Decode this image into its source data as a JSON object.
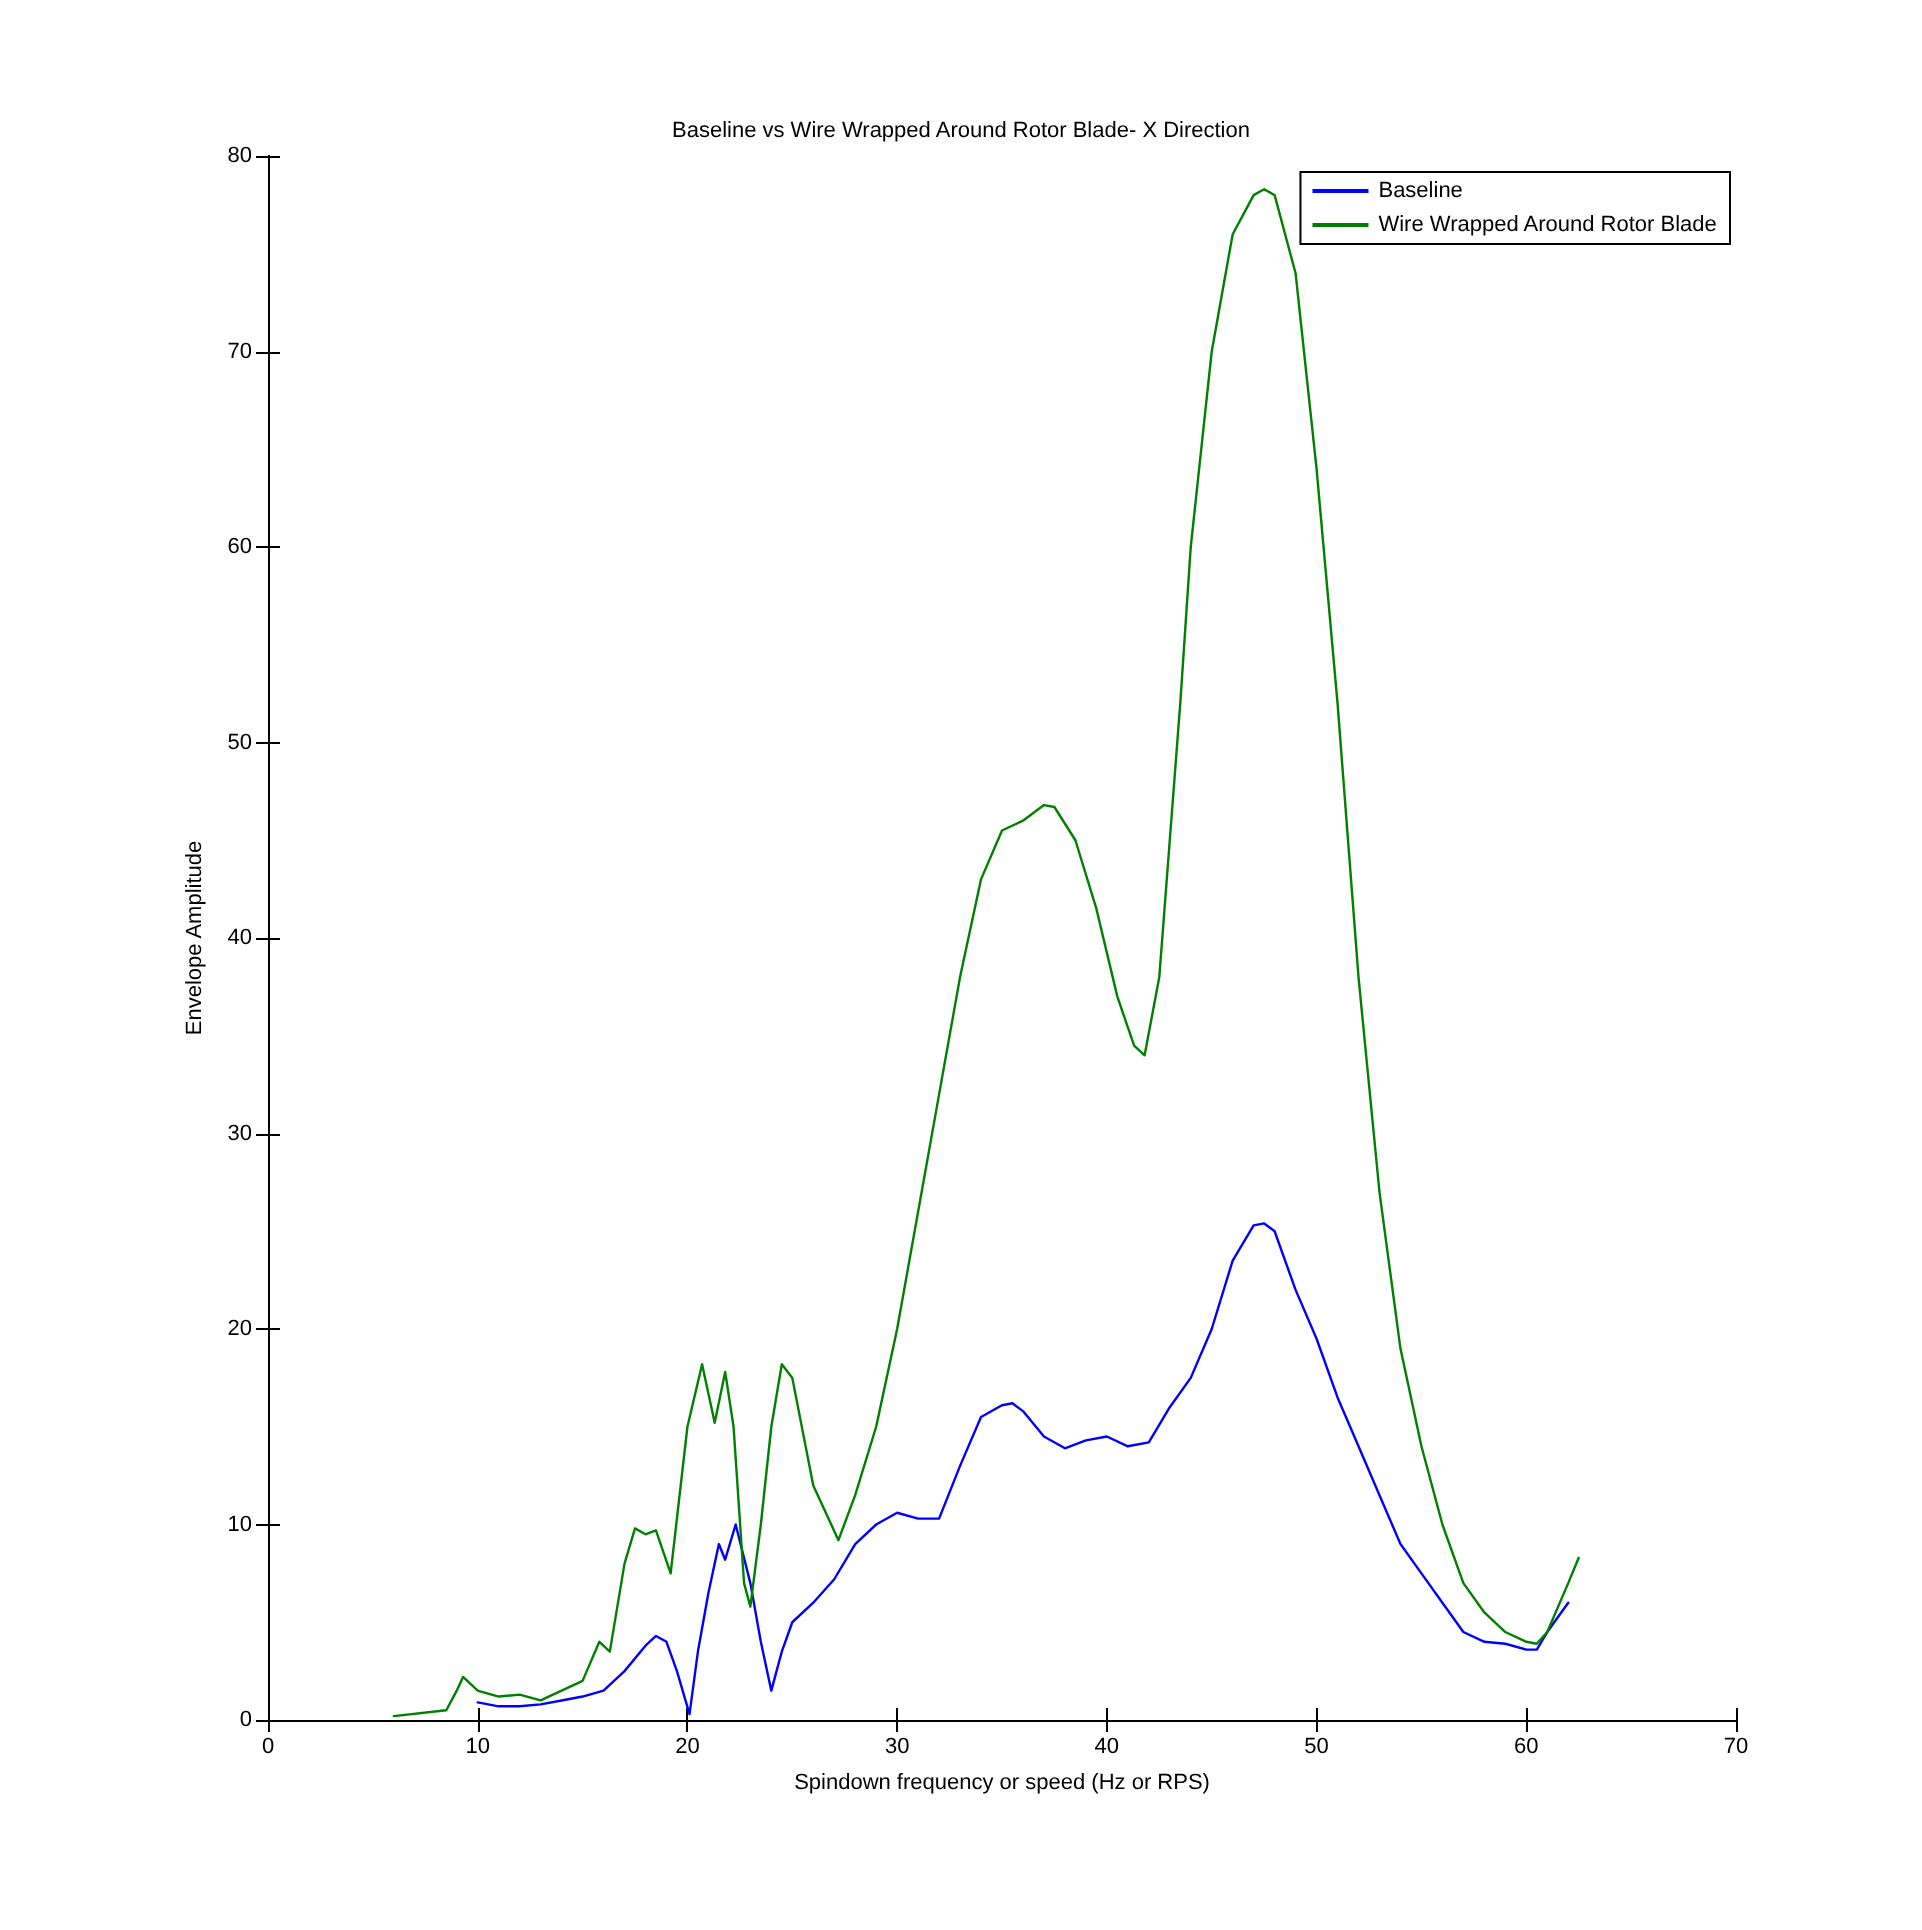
{
  "chart_data": {
    "type": "line",
    "title": "Baseline vs Wire Wrapped Around Rotor Blade- X Direction",
    "xlabel": "Spindown frequency or speed (Hz or RPS)",
    "ylabel": "Envelope Amplitude",
    "xlim": [
      0,
      70
    ],
    "xticks": [
      0,
      10,
      20,
      30,
      40,
      50,
      60,
      70
    ],
    "ylim": [
      0,
      80
    ],
    "yticks": [
      0,
      10,
      20,
      30,
      40,
      50,
      60,
      70,
      80
    ],
    "grid": false,
    "legend": "top right",
    "marker": "none",
    "line_style": "solid",
    "series": [
      {
        "name": "Baseline",
        "color": "#0000ff",
        "x": [
          10,
          11,
          12,
          13,
          14,
          15,
          16,
          17,
          18,
          18.5,
          19,
          19.5,
          20.1,
          20.5,
          21,
          21.5,
          21.8,
          22.3,
          23,
          23.5,
          24,
          24.5,
          25,
          26,
          27,
          28,
          29,
          30,
          31,
          32,
          33,
          34,
          35,
          35.5,
          36,
          37,
          38,
          39,
          40,
          41,
          42,
          43,
          44,
          45,
          46,
          47,
          47.5,
          48,
          49,
          50,
          51,
          52,
          53,
          54,
          55,
          56,
          57,
          58,
          59,
          60,
          60.5,
          61,
          62
        ],
        "values": [
          0.9,
          0.7,
          0.7,
          0.8,
          1.0,
          1.2,
          1.5,
          2.5,
          3.8,
          4.3,
          4.0,
          2.5,
          0.3,
          3.5,
          6.5,
          9,
          8.2,
          10,
          7,
          4,
          1.5,
          3.5,
          5,
          6,
          7.2,
          9,
          10,
          10.6,
          10.3,
          10.3,
          13,
          15.5,
          16.1,
          16.2,
          15.8,
          14.5,
          13.9,
          14.3,
          14.5,
          14,
          14.2,
          16,
          17.5,
          20,
          23.5,
          25.3,
          25.4,
          25,
          22,
          19.5,
          16.5,
          14,
          11.5,
          9,
          7.5,
          6,
          4.5,
          4.0,
          3.9,
          3.6,
          3.6,
          4.5,
          6
        ]
      },
      {
        "name": "Wire Wrapped Around Rotor Blade",
        "color": "#008000",
        "x": [
          6,
          8.5,
          9,
          9.3,
          10,
          11,
          12,
          13,
          14,
          15,
          15.8,
          16.3,
          17,
          17.5,
          18,
          18.5,
          19.2,
          20,
          20.7,
          21.3,
          21.8,
          22.2,
          22.7,
          23,
          23.5,
          24,
          24.5,
          25,
          26,
          27.2,
          28,
          29,
          30,
          31,
          32,
          33,
          34,
          35,
          36,
          37,
          37.5,
          38.5,
          39.5,
          40.5,
          41.3,
          41.8,
          42.5,
          43,
          43.5,
          44,
          45,
          46,
          47,
          47.5,
          48,
          49,
          50,
          51,
          52,
          53,
          54,
          55,
          56,
          57,
          58,
          59,
          60,
          60.5,
          61,
          62,
          62.5
        ],
        "values": [
          0.2,
          0.5,
          1.5,
          2.2,
          1.5,
          1.2,
          1.3,
          1.0,
          1.5,
          2.0,
          4.0,
          3.5,
          8,
          9.8,
          9.5,
          9.7,
          7.5,
          15,
          18.2,
          15.2,
          17.8,
          15,
          7,
          5.8,
          10,
          15,
          18.2,
          17.5,
          12,
          9.2,
          11.5,
          15,
          20,
          26,
          32,
          38,
          43,
          45.5,
          46,
          46.8,
          46.7,
          45,
          41.5,
          37,
          34.5,
          34,
          38,
          45,
          52,
          60,
          70,
          76,
          78,
          78.3,
          78,
          74,
          64,
          52,
          38,
          27,
          19,
          14,
          10,
          7,
          5.5,
          4.5,
          4.0,
          3.9,
          4.5,
          7,
          8.3
        ]
      }
    ]
  }
}
